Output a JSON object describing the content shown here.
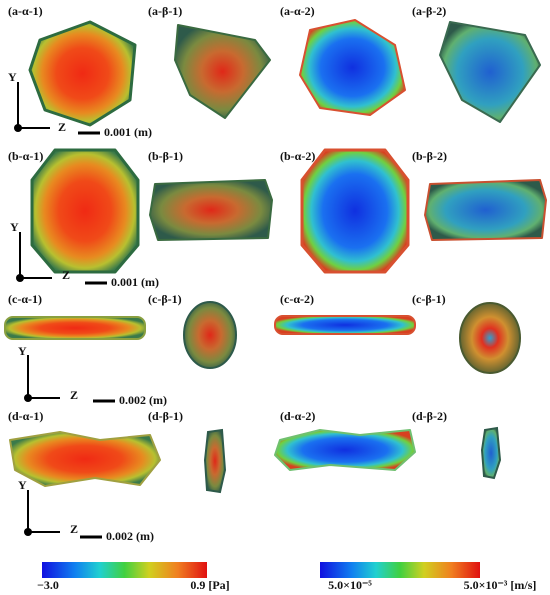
{
  "rows": [
    {
      "panels": [
        "(a-α-1)",
        "(a-β-1)",
        "(a-α-2)",
        "(a-β-2)"
      ],
      "axis_y": "Y",
      "axis_z": "Z",
      "scale": "0.001 (m)"
    },
    {
      "panels": [
        "(b-α-1)",
        "(b-β-1)",
        "(b-α-2)",
        "(b-β-2)"
      ],
      "axis_y": "Y",
      "axis_z": "Z",
      "scale": "0.001 (m)"
    },
    {
      "panels": [
        "(c-α-1)",
        "(c-β-1)",
        "(c-α-2)",
        "(c-β-1)"
      ],
      "axis_y": "Y",
      "axis_z": "Z",
      "scale": "0.002 (m)"
    },
    {
      "panels": [
        "(d-α-1)",
        "(d-β-1)",
        "(d-α-2)",
        "(d-β-2)"
      ],
      "axis_y": "Y",
      "axis_z": "Z",
      "scale": "0.002 (m)"
    }
  ],
  "colorbars": [
    {
      "min_label": "−3.0",
      "max_label": "0.9 [Pa]"
    },
    {
      "min_label": "5.0×10⁻⁵",
      "max_label": "5.0×10⁻³ [m/s]"
    }
  ]
}
